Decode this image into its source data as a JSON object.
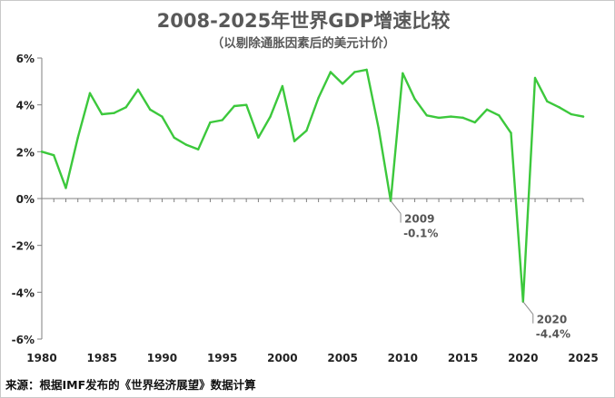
{
  "chart_data": {
    "type": "line",
    "title": "2008-2025年世界GDP增速比较",
    "subtitle": "（以剔除通胀因素后的美元计价）",
    "x": [
      1980,
      1981,
      1982,
      1983,
      1984,
      1985,
      1986,
      1987,
      1988,
      1989,
      1990,
      1991,
      1992,
      1993,
      1994,
      1995,
      1996,
      1997,
      1998,
      1999,
      2000,
      2001,
      2002,
      2003,
      2004,
      2005,
      2006,
      2007,
      2008,
      2009,
      2010,
      2011,
      2012,
      2013,
      2014,
      2015,
      2016,
      2017,
      2018,
      2019,
      2020,
      2021,
      2022,
      2023,
      2024,
      2025
    ],
    "series": [
      {
        "name": "世界GDP增速",
        "color": "#3cc83c",
        "values": [
          2.0,
          1.85,
          0.45,
          2.6,
          4.5,
          3.6,
          3.65,
          3.9,
          4.65,
          3.8,
          3.5,
          2.6,
          2.3,
          2.1,
          3.25,
          3.35,
          3.95,
          4.0,
          2.6,
          3.5,
          4.8,
          2.45,
          2.9,
          4.3,
          5.4,
          4.9,
          5.4,
          5.5,
          3.0,
          -0.1,
          5.35,
          4.25,
          3.55,
          3.45,
          3.5,
          3.45,
          3.25,
          3.8,
          3.55,
          2.8,
          -4.4,
          5.15,
          4.15,
          3.9,
          3.6,
          3.5
        ]
      }
    ],
    "ylim": [
      -6,
      6
    ],
    "yticks": [
      -6,
      -4,
      -2,
      0,
      2,
      4,
      6
    ],
    "ytick_labels": [
      "-6%",
      "-4%",
      "-2%",
      "0%",
      "2%",
      "4%",
      "6%"
    ],
    "xticks": [
      1980,
      1985,
      1990,
      1995,
      2000,
      2005,
      2010,
      2015,
      2020,
      2025
    ],
    "xtick_labels": [
      "1980",
      "1985",
      "1990",
      "1995",
      "2000",
      "2005",
      "2010",
      "2015",
      "2020",
      "2025"
    ],
    "annotations": [
      {
        "x": 2009,
        "y": -0.1,
        "year": "2009",
        "value": "-0.1%"
      },
      {
        "x": 2020,
        "y": -4.4,
        "year": "2020",
        "value": "-4.4%"
      }
    ],
    "source": "来源：根据IMF发布的《世界经济展望》数据计算"
  }
}
